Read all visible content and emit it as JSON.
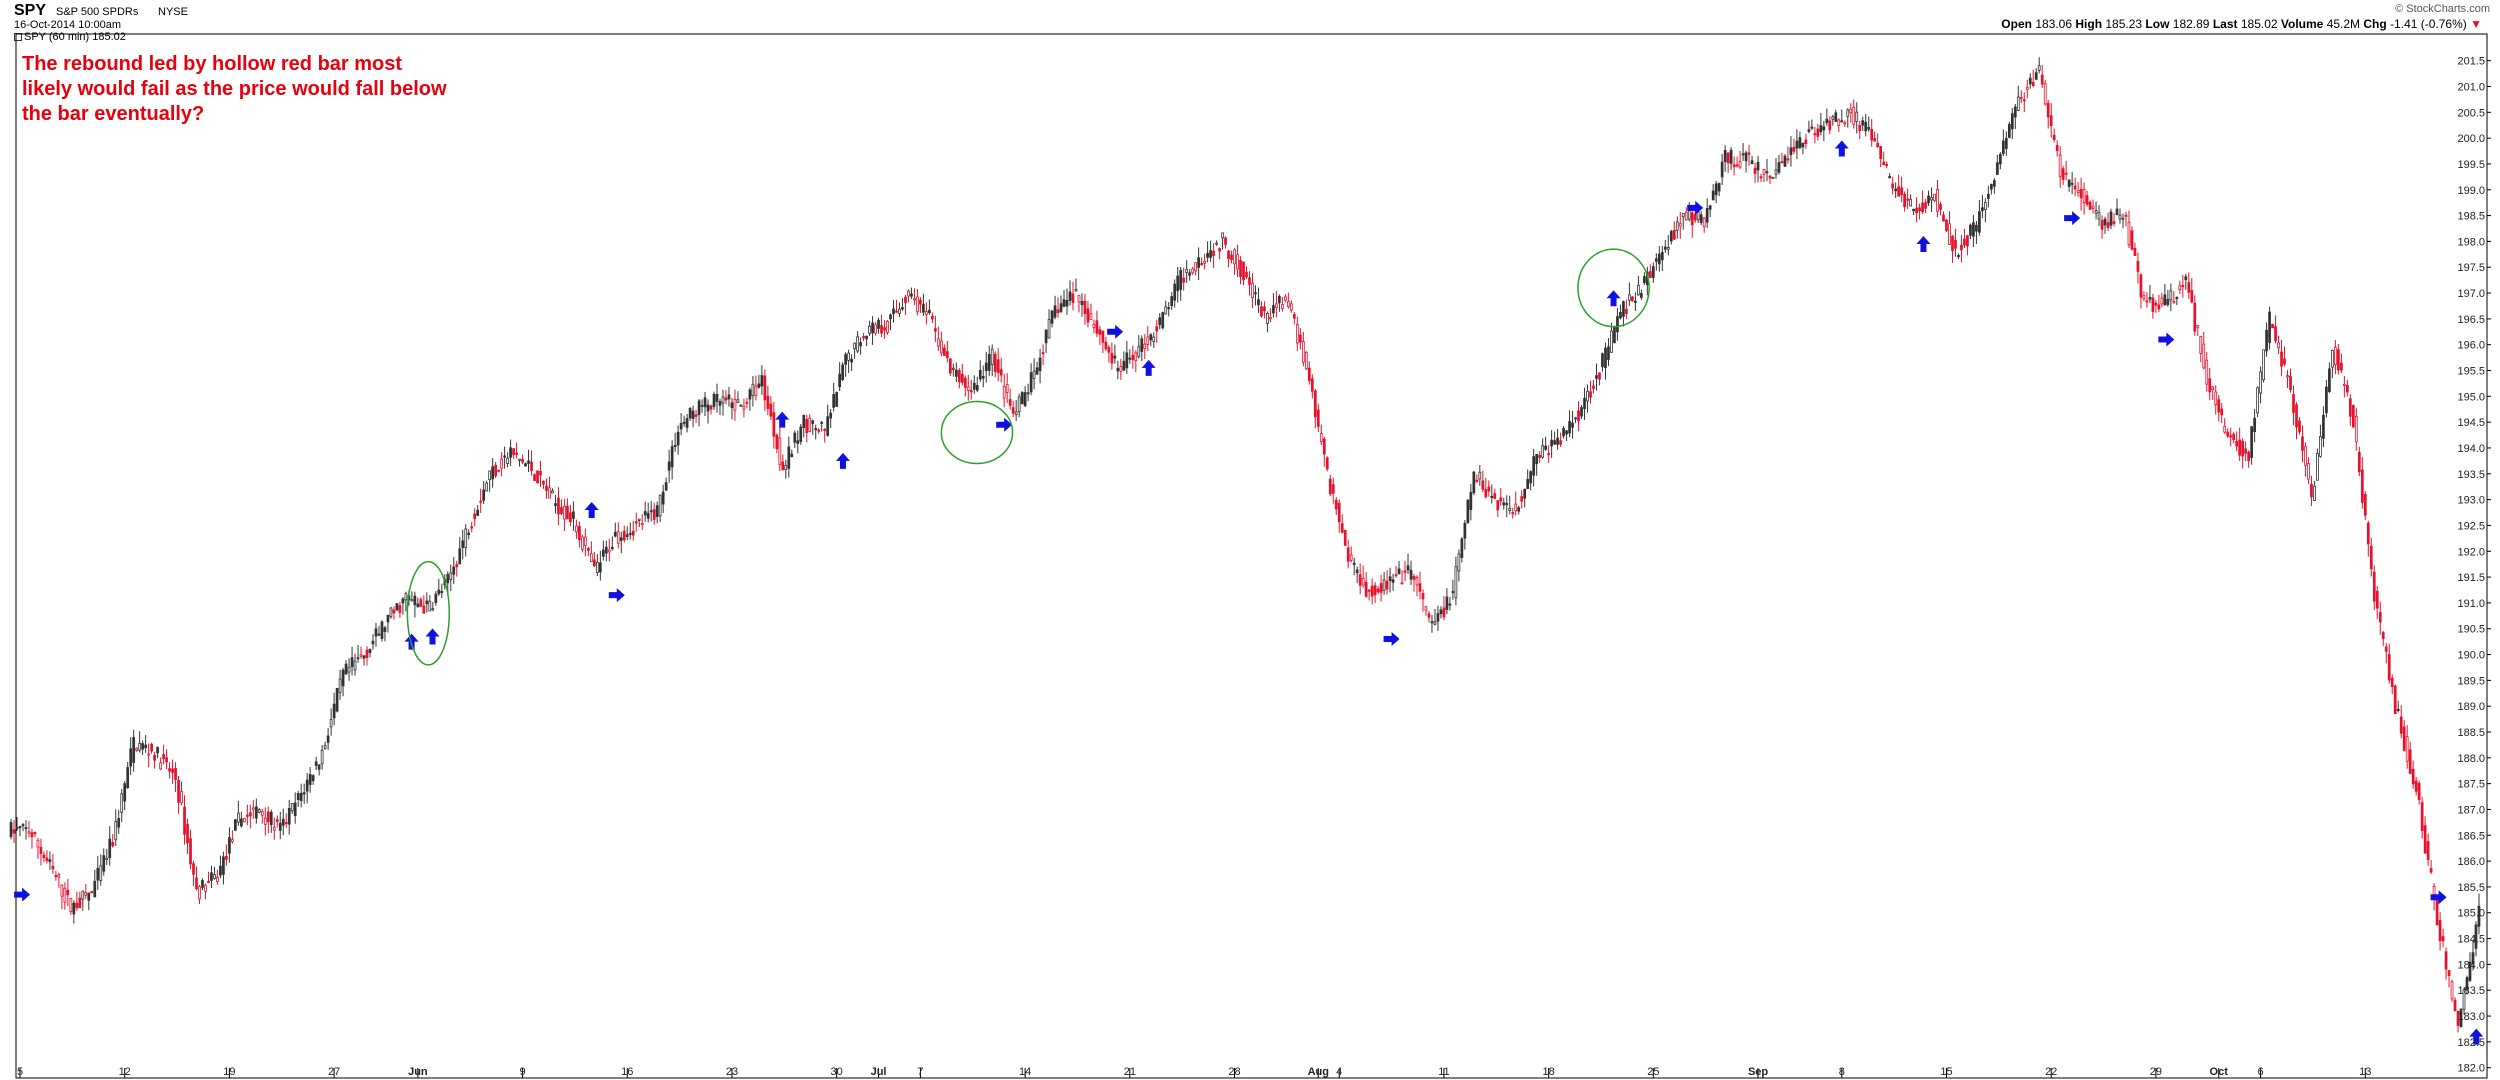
{
  "header": {
    "ticker": "SPY",
    "name": "S&P 500 SPDRs",
    "exchange": "NYSE",
    "date": "16-Oct-2014 10:00am",
    "legend": "SPY (60 min) 185.02",
    "credit": "© StockCharts.com",
    "quote": {
      "open_label": "Open",
      "open": "183.06",
      "high_label": "High",
      "high": "185.23",
      "low_label": "Low",
      "low": "182.89",
      "last_label": "Last",
      "last": "185.02",
      "volume_label": "Volume",
      "volume": "45.2M",
      "chg_label": "Chg",
      "chg": "-1.41 (-0.76%)"
    }
  },
  "annotation": "The rebound led by hollow red bar most likely would fail as the price would fall below the bar eventually?",
  "colors": {
    "up": "#333333",
    "down": "#e8102a",
    "arrow": "#1010e0",
    "circle": "#2e9e2e",
    "annotation": "#e8000d"
  },
  "chart_data": {
    "type": "candlestick",
    "interval": "60 min",
    "ylim": [
      181.8,
      201.9
    ],
    "yticks": [
      182.0,
      182.5,
      183.0,
      183.5,
      184.0,
      184.5,
      185.0,
      185.5,
      186.0,
      186.5,
      187.0,
      187.5,
      188.0,
      188.5,
      189.0,
      189.5,
      190.0,
      190.5,
      191.0,
      191.5,
      192.0,
      192.5,
      193.0,
      193.5,
      194.0,
      194.5,
      195.0,
      195.5,
      196.0,
      196.5,
      197.0,
      197.5,
      198.0,
      198.5,
      199.0,
      199.5,
      200.0,
      200.5,
      201.0,
      201.5
    ],
    "xticks": [
      {
        "label": "5",
        "day": 0
      },
      {
        "label": "12",
        "day": 5
      },
      {
        "label": "19",
        "day": 10
      },
      {
        "label": "27",
        "day": 15
      },
      {
        "label": "Jun",
        "day": 19,
        "month": true
      },
      {
        "label": "9",
        "day": 24
      },
      {
        "label": "16",
        "day": 29
      },
      {
        "label": "23",
        "day": 34
      },
      {
        "label": "30",
        "day": 39
      },
      {
        "label": "Jul",
        "day": 41,
        "month": true
      },
      {
        "label": "7",
        "day": 43
      },
      {
        "label": "14",
        "day": 48
      },
      {
        "label": "21",
        "day": 53
      },
      {
        "label": "28",
        "day": 58
      },
      {
        "label": "Aug",
        "day": 62,
        "month": true
      },
      {
        "label": "4",
        "day": 63
      },
      {
        "label": "11",
        "day": 68
      },
      {
        "label": "18",
        "day": 73
      },
      {
        "label": "25",
        "day": 78
      },
      {
        "label": "Sep",
        "day": 83,
        "month": true
      },
      {
        "label": "8",
        "day": 87
      },
      {
        "label": "15",
        "day": 92
      },
      {
        "label": "22",
        "day": 97
      },
      {
        "label": "29",
        "day": 102
      },
      {
        "label": "Oct",
        "day": 105,
        "month": true
      },
      {
        "label": "6",
        "day": 107
      },
      {
        "label": "13",
        "day": 112
      }
    ],
    "daily_close": [
      [
        0,
        186.6
      ],
      [
        1,
        185.9
      ],
      [
        2,
        185.1
      ],
      [
        3,
        185.4
      ],
      [
        4,
        186.4
      ],
      [
        5,
        188.3
      ],
      [
        6,
        188.1
      ],
      [
        7,
        187.6
      ],
      [
        8,
        185.4
      ],
      [
        9,
        185.7
      ],
      [
        10,
        186.8
      ],
      [
        11,
        187.0
      ],
      [
        12,
        186.6
      ],
      [
        13,
        187.3
      ],
      [
        14,
        188.1
      ],
      [
        15,
        189.6
      ],
      [
        16,
        190.0
      ],
      [
        17,
        190.6
      ],
      [
        18,
        191.1
      ],
      [
        19,
        190.9
      ],
      [
        20,
        191.4
      ],
      [
        21,
        192.5
      ],
      [
        22,
        193.5
      ],
      [
        23,
        193.9
      ],
      [
        24,
        193.6
      ],
      [
        25,
        193.0
      ],
      [
        26,
        192.6
      ],
      [
        27,
        191.6
      ],
      [
        28,
        192.3
      ],
      [
        29,
        192.5
      ],
      [
        30,
        192.8
      ],
      [
        31,
        194.4
      ],
      [
        32,
        194.8
      ],
      [
        33,
        194.9
      ],
      [
        34,
        194.8
      ],
      [
        35,
        195.3
      ],
      [
        36,
        193.6
      ],
      [
        37,
        194.5
      ],
      [
        38,
        194.3
      ],
      [
        39,
        195.7
      ],
      [
        40,
        196.3
      ],
      [
        41,
        196.4
      ],
      [
        42,
        197.0
      ],
      [
        43,
        196.5
      ],
      [
        44,
        195.5
      ],
      [
        45,
        195.1
      ],
      [
        46,
        195.8
      ],
      [
        47,
        194.6
      ],
      [
        48,
        195.4
      ],
      [
        49,
        196.7
      ],
      [
        50,
        197.0
      ],
      [
        51,
        196.3
      ],
      [
        52,
        195.5
      ],
      [
        53,
        195.9
      ],
      [
        54,
        196.4
      ],
      [
        55,
        197.3
      ],
      [
        56,
        197.7
      ],
      [
        57,
        198.0
      ],
      [
        58,
        197.4
      ],
      [
        59,
        196.5
      ],
      [
        60,
        196.9
      ],
      [
        61,
        195.6
      ],
      [
        62,
        193.5
      ],
      [
        63,
        191.9
      ],
      [
        64,
        191.2
      ],
      [
        65,
        191.4
      ],
      [
        66,
        191.6
      ],
      [
        67,
        190.5
      ],
      [
        68,
        191.2
      ],
      [
        69,
        193.5
      ],
      [
        70,
        193.0
      ],
      [
        71,
        192.8
      ],
      [
        72,
        193.9
      ],
      [
        73,
        194.1
      ],
      [
        74,
        194.7
      ],
      [
        75,
        195.5
      ],
      [
        76,
        196.6
      ],
      [
        77,
        197.1
      ],
      [
        78,
        197.8
      ],
      [
        79,
        198.5
      ],
      [
        80,
        198.4
      ],
      [
        81,
        199.6
      ],
      [
        82,
        199.6
      ],
      [
        83,
        199.2
      ],
      [
        84,
        199.7
      ],
      [
        85,
        200.1
      ],
      [
        86,
        200.3
      ],
      [
        87,
        200.5
      ],
      [
        88,
        200.0
      ],
      [
        89,
        199.1
      ],
      [
        90,
        198.6
      ],
      [
        91,
        198.9
      ],
      [
        92,
        197.8
      ],
      [
        93,
        198.3
      ],
      [
        94,
        199.5
      ],
      [
        95,
        200.7
      ],
      [
        96,
        201.3
      ],
      [
        97,
        199.3
      ],
      [
        98,
        198.9
      ],
      [
        99,
        198.3
      ],
      [
        100,
        198.6
      ],
      [
        101,
        196.8
      ],
      [
        102,
        196.8
      ],
      [
        103,
        197.2
      ],
      [
        104,
        195.4
      ],
      [
        105,
        194.2
      ],
      [
        106,
        193.9
      ],
      [
        107,
        196.5
      ],
      [
        108,
        195.1
      ],
      [
        109,
        193.0
      ],
      [
        110,
        196.0
      ],
      [
        111,
        194.5
      ],
      [
        112,
        191.1
      ],
      [
        113,
        189.0
      ],
      [
        114,
        187.4
      ],
      [
        115,
        184.9
      ],
      [
        116,
        182.8
      ],
      [
        117,
        185.0
      ]
    ],
    "markers": {
      "arrows": [
        {
          "dir": "right",
          "day": 0.1,
          "price": 185.35
        },
        {
          "dir": "up",
          "day": 18.7,
          "price": 190.25
        },
        {
          "dir": "up",
          "day": 19.7,
          "price": 190.35
        },
        {
          "dir": "up",
          "day": 27.3,
          "price": 192.8
        },
        {
          "dir": "right",
          "day": 28.5,
          "price": 191.15
        },
        {
          "dir": "up",
          "day": 36.4,
          "price": 194.55
        },
        {
          "dir": "up",
          "day": 39.3,
          "price": 193.75
        },
        {
          "dir": "right",
          "day": 47.0,
          "price": 194.45
        },
        {
          "dir": "right",
          "day": 52.3,
          "price": 196.25
        },
        {
          "dir": "up",
          "day": 53.9,
          "price": 195.55
        },
        {
          "dir": "right",
          "day": 65.5,
          "price": 190.3
        },
        {
          "dir": "up",
          "day": 76.1,
          "price": 196.9
        },
        {
          "dir": "right",
          "day": 80.0,
          "price": 198.65
        },
        {
          "dir": "up",
          "day": 87.0,
          "price": 199.8
        },
        {
          "dir": "up",
          "day": 90.9,
          "price": 197.95
        },
        {
          "dir": "right",
          "day": 98.0,
          "price": 198.45
        },
        {
          "dir": "right",
          "day": 102.5,
          "price": 196.1
        },
        {
          "dir": "right",
          "day": 115.5,
          "price": 185.3
        },
        {
          "dir": "up",
          "day": 117.3,
          "price": 182.6
        }
      ],
      "circles": [
        {
          "day": 19.5,
          "price": 190.8,
          "rx_days": 1.0,
          "ry_price": 1.0
        },
        {
          "day": 45.7,
          "price": 194.3,
          "rx_days": 1.7,
          "ry_price": 0.6
        },
        {
          "day": 76.1,
          "price": 197.1,
          "rx_days": 1.7,
          "ry_price": 0.75
        }
      ]
    },
    "grid": false
  }
}
